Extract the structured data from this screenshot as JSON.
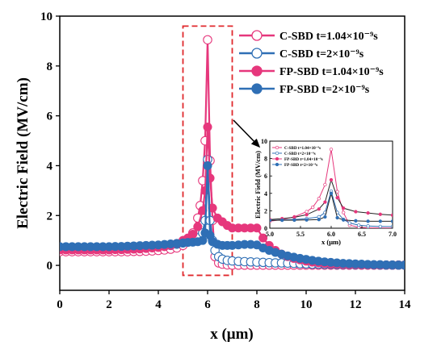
{
  "chart_data": [
    {
      "type": "line",
      "xlabel": "x (μm)",
      "ylabel": "Electric Field (MV/cm)",
      "xlim": [
        0,
        14
      ],
      "ylim": [
        -1,
        10
      ],
      "x_ticks": [
        "0",
        "2",
        "4",
        "6",
        "8",
        "10",
        "12",
        "14"
      ],
      "y_ticks": [
        "0",
        "2",
        "4",
        "6",
        "8",
        "10"
      ],
      "grid": false,
      "legend_position": "top-right",
      "highlight_box": {
        "x": [
          5,
          7
        ],
        "y": [
          -0.4,
          9.6
        ],
        "color": "#e0282c"
      },
      "series": [
        {
          "name": "C-SBD t=1.04×10⁻⁹s",
          "color": "#e6377c",
          "marker": "open-circle",
          "x": [
            0,
            0.25,
            0.5,
            0.75,
            1,
            1.25,
            1.5,
            1.75,
            2,
            2.25,
            2.5,
            2.75,
            3,
            3.25,
            3.5,
            3.75,
            4,
            4.25,
            4.5,
            4.75,
            5,
            5.2,
            5.4,
            5.6,
            5.7,
            5.8,
            5.9,
            6.0,
            6.1,
            6.2,
            6.3,
            6.45,
            6.6,
            6.8,
            7,
            7.25,
            7.5,
            7.75,
            8,
            8.25,
            8.5,
            8.75,
            9,
            9.25,
            9.5,
            9.75,
            10,
            10.25,
            10.5,
            10.75,
            11,
            11.25,
            11.5,
            11.75,
            12,
            12.25,
            12.5,
            12.75,
            13,
            13.25,
            13.5,
            13.75,
            14
          ],
          "y": [
            0.55,
            0.55,
            0.55,
            0.55,
            0.55,
            0.55,
            0.55,
            0.55,
            0.55,
            0.55,
            0.55,
            0.55,
            0.56,
            0.56,
            0.57,
            0.58,
            0.6,
            0.62,
            0.65,
            0.7,
            0.8,
            1.0,
            1.3,
            1.9,
            2.4,
            3.4,
            5.0,
            9.05,
            4.2,
            1.8,
            0.35,
            0.1,
            0.05,
            0.02,
            0.01,
            0.01,
            0.01,
            0.01,
            0.01,
            0.01,
            0.01,
            0.01,
            0.01,
            0.01,
            0.01,
            0.01,
            0.01,
            0.01,
            0.01,
            0.01,
            0.01,
            0.01,
            0.01,
            0.01,
            0.01,
            0.01,
            0.01,
            0.01,
            0.01,
            0.01,
            0.01,
            0.01,
            0.01
          ]
        },
        {
          "name": "C-SBD t=2×10⁻⁹s",
          "color": "#2f6fb5",
          "marker": "open-circle",
          "x": [
            0,
            0.25,
            0.5,
            0.75,
            1,
            1.25,
            1.5,
            1.75,
            2,
            2.25,
            2.5,
            2.75,
            3,
            3.25,
            3.5,
            3.75,
            4,
            4.25,
            4.5,
            4.75,
            5,
            5.2,
            5.4,
            5.6,
            5.8,
            5.9,
            6.0,
            6.1,
            6.2,
            6.3,
            6.45,
            6.6,
            6.8,
            7,
            7.25,
            7.5,
            7.75,
            8,
            8.25,
            8.5,
            8.75,
            9,
            9.25,
            9.5,
            9.75,
            10,
            10.25,
            10.5,
            10.75,
            11,
            11.25,
            11.5,
            11.75,
            12,
            12.25,
            12.5,
            12.75,
            13,
            13.25,
            13.5,
            13.75,
            14
          ],
          "y": [
            0.7,
            0.7,
            0.7,
            0.7,
            0.7,
            0.7,
            0.7,
            0.7,
            0.7,
            0.7,
            0.7,
            0.7,
            0.72,
            0.72,
            0.73,
            0.74,
            0.75,
            0.77,
            0.8,
            0.85,
            0.9,
            0.95,
            1.0,
            1.1,
            1.3,
            1.8,
            4.25,
            1.8,
            1.0,
            0.6,
            0.35,
            0.25,
            0.2,
            0.18,
            0.16,
            0.15,
            0.14,
            0.13,
            0.12,
            0.11,
            0.1,
            0.1,
            0.09,
            0.08,
            0.07,
            0.06,
            0.05,
            0.05,
            0.04,
            0.04,
            0.03,
            0.03,
            0.03,
            0.02,
            0.02,
            0.02,
            0.02,
            0.01,
            0.01,
            0.01,
            0.01,
            0.01
          ]
        },
        {
          "name": "FP-SBD t=1.04×10⁻⁹s",
          "color": "#e6377c",
          "marker": "filled-circle",
          "x": [
            0,
            0.25,
            0.5,
            0.75,
            1,
            1.25,
            1.5,
            1.75,
            2,
            2.25,
            2.5,
            2.75,
            3,
            3.25,
            3.5,
            3.75,
            4,
            4.25,
            4.5,
            4.75,
            5,
            5.2,
            5.4,
            5.6,
            5.8,
            5.9,
            6.0,
            6.1,
            6.2,
            6.4,
            6.6,
            6.8,
            7,
            7.25,
            7.5,
            7.75,
            8,
            8.25,
            8.5,
            8.75,
            9,
            9.25,
            9.5,
            9.75,
            10,
            10.25,
            10.5,
            10.75,
            11,
            11.25,
            11.5,
            11.75,
            12,
            12.25,
            12.5,
            12.75,
            13,
            13.25,
            13.5,
            13.75,
            14
          ],
          "y": [
            0.62,
            0.62,
            0.62,
            0.62,
            0.62,
            0.62,
            0.62,
            0.62,
            0.62,
            0.63,
            0.63,
            0.64,
            0.65,
            0.66,
            0.68,
            0.7,
            0.72,
            0.75,
            0.8,
            0.88,
            1.0,
            1.1,
            1.25,
            1.55,
            2.2,
            3.0,
            5.55,
            3.5,
            2.3,
            1.9,
            1.75,
            1.6,
            1.5,
            1.5,
            1.5,
            1.5,
            1.5,
            1.1,
            0.8,
            0.6,
            0.45,
            0.35,
            0.28,
            0.22,
            0.17,
            0.13,
            0.1,
            0.08,
            0.06,
            0.05,
            0.04,
            0.03,
            0.03,
            0.02,
            0.02,
            0.02,
            0.01,
            0.01,
            0.01,
            0.01,
            0.01
          ]
        },
        {
          "name": "FP-SBD t=2×10⁻⁹s",
          "color": "#2f6fb5",
          "marker": "filled-circle",
          "x": [
            0,
            0.25,
            0.5,
            0.75,
            1,
            1.25,
            1.5,
            1.75,
            2,
            2.25,
            2.5,
            2.75,
            3,
            3.25,
            3.5,
            3.75,
            4,
            4.25,
            4.5,
            4.75,
            5,
            5.2,
            5.4,
            5.6,
            5.8,
            5.9,
            6.0,
            6.1,
            6.2,
            6.4,
            6.6,
            6.8,
            7,
            7.25,
            7.5,
            7.75,
            8,
            8.25,
            8.5,
            8.75,
            9,
            9.25,
            9.5,
            9.75,
            10,
            10.25,
            10.5,
            10.75,
            11,
            11.25,
            11.5,
            11.75,
            12,
            12.25,
            12.5,
            12.75,
            13,
            13.25,
            13.5,
            13.75,
            14
          ],
          "y": [
            0.75,
            0.75,
            0.75,
            0.75,
            0.75,
            0.75,
            0.75,
            0.75,
            0.75,
            0.76,
            0.76,
            0.77,
            0.78,
            0.79,
            0.8,
            0.81,
            0.82,
            0.84,
            0.86,
            0.88,
            0.9,
            0.92,
            0.93,
            0.95,
            1.0,
            1.3,
            4.0,
            1.2,
            0.95,
            0.85,
            0.8,
            0.8,
            0.8,
            0.82,
            0.84,
            0.84,
            0.82,
            0.7,
            0.6,
            0.52,
            0.45,
            0.38,
            0.33,
            0.28,
            0.24,
            0.2,
            0.17,
            0.14,
            0.12,
            0.1,
            0.08,
            0.07,
            0.06,
            0.05,
            0.04,
            0.03,
            0.03,
            0.02,
            0.02,
            0.01,
            0.01
          ]
        }
      ]
    },
    {
      "type": "line",
      "xlabel": "x (μm)",
      "ylabel": "Electric Field (MV/cm)",
      "xlim": [
        5.0,
        7.0
      ],
      "ylim": [
        0,
        10
      ],
      "x_ticks": [
        "5.0",
        "5.5",
        "6.0",
        "6.5",
        "7.0"
      ],
      "y_ticks": [
        "0",
        "2",
        "4",
        "6",
        "8",
        "10"
      ],
      "grid": false,
      "legend_position": "top-left",
      "legend": [
        "C-SBD t=1.04×10⁻⁹s",
        "C-SBD t=2×10⁻⁹s",
        "FP-SBD t=1.04×10⁻⁹s",
        "FP-SBD t=2×10⁻⁹s"
      ],
      "note": "zoomed view of x = 5–7 μm; same series as main chart"
    }
  ]
}
